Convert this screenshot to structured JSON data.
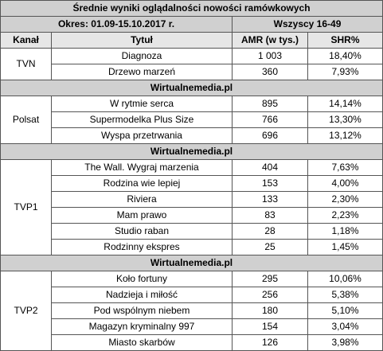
{
  "title": "Średnie wyniki oglądalności nowości ramówkowych",
  "period": "Okres: 01.09-15.10.2017 r.",
  "audience": "Wszyscy 16-49",
  "columns": [
    "Kanał",
    "Tytuł",
    "AMR (w tys.)",
    "SHR%"
  ],
  "separator": "Wirtualnemedia.pl",
  "groups": [
    {
      "channel": "TVN",
      "rows": [
        {
          "title": "Diagnoza",
          "amr": "1 003",
          "shr": "18,40%"
        },
        {
          "title": "Drzewo marzeń",
          "amr": "360",
          "shr": "7,93%"
        }
      ]
    },
    {
      "channel": "Polsat",
      "rows": [
        {
          "title": "W rytmie serca",
          "amr": "895",
          "shr": "14,14%"
        },
        {
          "title": "Supermodelka Plus Size",
          "amr": "766",
          "shr": "13,30%"
        },
        {
          "title": "Wyspa przetrwania",
          "amr": "696",
          "shr": "13,12%"
        }
      ]
    },
    {
      "channel": "TVP1",
      "rows": [
        {
          "title": "The Wall. Wygraj marzenia",
          "amr": "404",
          "shr": "7,63%"
        },
        {
          "title": "Rodzina wie lepiej",
          "amr": "153",
          "shr": "4,00%"
        },
        {
          "title": "Riviera",
          "amr": "133",
          "shr": "2,30%"
        },
        {
          "title": "Mam prawo",
          "amr": "83",
          "shr": "2,23%"
        },
        {
          "title": "Studio raban",
          "amr": "28",
          "shr": "1,18%"
        },
        {
          "title": "Rodzinny ekspres",
          "amr": "25",
          "shr": "1,45%"
        }
      ]
    },
    {
      "channel": "TVP2",
      "rows": [
        {
          "title": "Koło fortuny",
          "amr": "295",
          "shr": "10,06%"
        },
        {
          "title": "Nadzieja i miłość",
          "amr": "256",
          "shr": "5,38%"
        },
        {
          "title": "Pod wspólnym niebem",
          "amr": "180",
          "shr": "5,10%"
        },
        {
          "title": "Magazyn kryminalny 997",
          "amr": "154",
          "shr": "3,04%"
        },
        {
          "title": "Miasto skarbów",
          "amr": "126",
          "shr": "3,98%"
        }
      ]
    }
  ]
}
